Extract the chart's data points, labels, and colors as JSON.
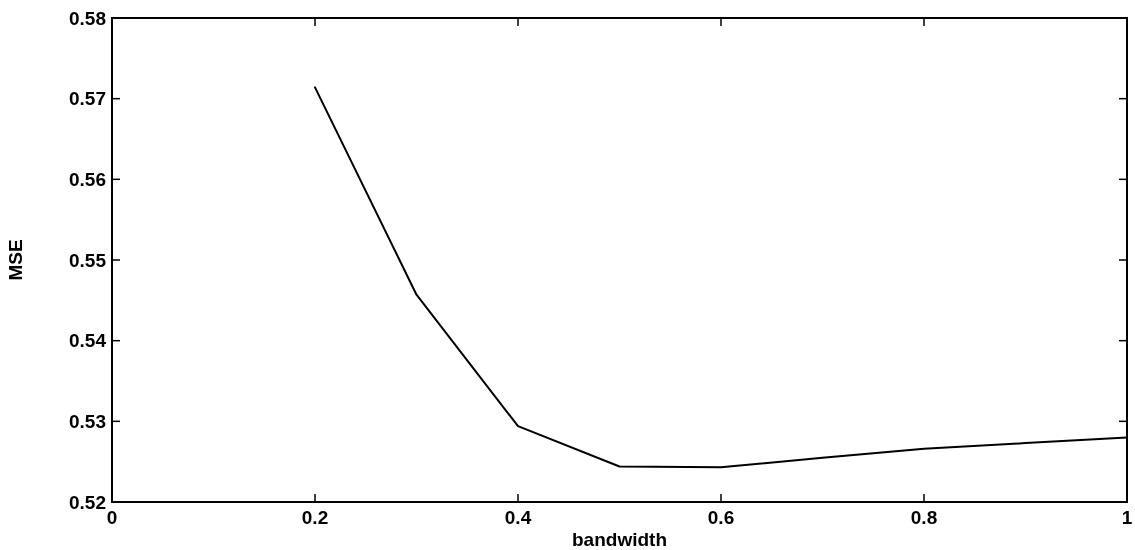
{
  "chart_data": {
    "type": "line",
    "xlabel": "bandwidth",
    "ylabel": "MSE",
    "x": [
      0.2,
      0.3,
      0.4,
      0.5,
      0.6,
      0.7,
      0.8,
      0.9,
      1.0
    ],
    "series": [
      {
        "color": "#000000",
        "values": [
          0.5714,
          0.5457,
          0.5294,
          0.5244,
          0.5243,
          0.5255,
          0.5266,
          0.5273,
          0.528
        ]
      }
    ],
    "xlim": [
      0,
      1
    ],
    "xticks": [
      0,
      0.2,
      0.4,
      0.6,
      0.8,
      1
    ],
    "ylim": [
      0.52,
      0.58
    ],
    "yticks": [
      0.52,
      0.53,
      0.54,
      0.55,
      0.56,
      0.57,
      0.58
    ],
    "grid": false,
    "marker": "none",
    "line_style": "solid"
  }
}
